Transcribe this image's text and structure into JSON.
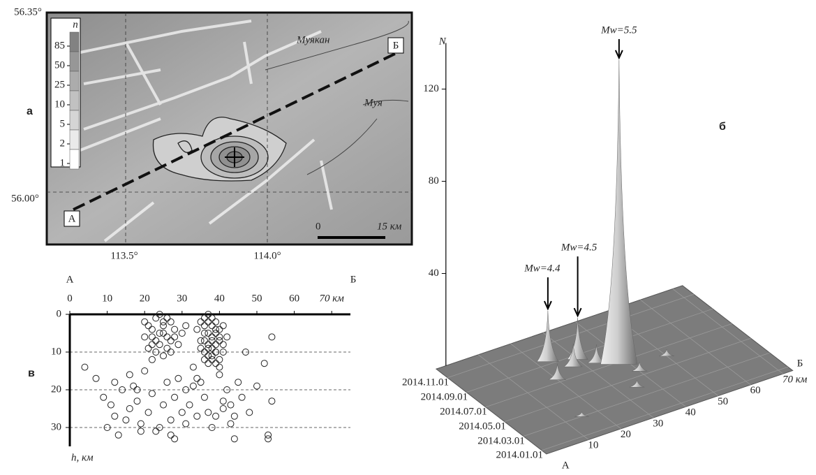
{
  "panels": {
    "a": "а",
    "b": "б",
    "v": "в"
  },
  "map": {
    "lat_labels": [
      "56.35°",
      "56.00°"
    ],
    "lon_labels": [
      "113.5°",
      "114.0°"
    ],
    "legend": {
      "title": "n",
      "ticks": [
        85,
        50,
        25,
        10,
        5,
        2,
        1
      ]
    },
    "rivers": [
      "Муякан",
      "Муя"
    ],
    "profile": [
      "А",
      "Б"
    ],
    "scale": [
      "0",
      "15 км"
    ]
  },
  "chart_data": [
    {
      "type": "scatter",
      "xlabel_start": "А",
      "xlabel_end": "Б",
      "ylabel": "h, км",
      "xlim": [
        0,
        75
      ],
      "ylim": [
        0,
        35
      ],
      "xticks": [
        0,
        10,
        20,
        30,
        40,
        50,
        60,
        {
          "value": 70,
          "label": "70 км"
        }
      ],
      "yticks": [
        0,
        10,
        20,
        30
      ],
      "grid": true,
      "x": [
        35,
        36,
        37,
        38,
        39,
        40,
        41,
        36,
        37,
        38,
        39,
        40,
        35,
        36,
        37,
        38,
        39,
        40,
        41,
        37,
        38,
        39,
        36,
        37,
        38,
        39,
        40,
        34,
        35,
        36,
        37,
        38,
        39,
        40,
        41,
        42,
        36,
        37,
        38,
        39,
        20,
        21,
        22,
        23,
        24,
        25,
        26,
        27,
        28,
        22,
        23,
        24,
        25,
        26,
        27,
        21,
        23,
        25,
        27,
        29,
        24,
        26,
        22,
        28,
        30,
        31,
        20,
        25,
        4,
        7,
        9,
        11,
        12,
        14,
        16,
        17,
        18,
        19,
        21,
        22,
        23,
        25,
        26,
        27,
        28,
        29,
        30,
        31,
        32,
        33,
        34,
        35,
        36,
        38,
        40,
        41,
        42,
        43,
        44,
        45,
        46,
        48,
        50,
        52,
        53,
        54,
        10,
        13,
        15,
        18,
        20,
        24,
        28,
        31,
        34,
        37,
        41,
        44,
        12,
        16,
        19,
        22,
        27,
        33,
        39,
        43,
        53,
        47,
        54
      ],
      "y": [
        2,
        3,
        2,
        3,
        2,
        4,
        3,
        5,
        5,
        6,
        5,
        6,
        7,
        7,
        8,
        7,
        8,
        7,
        8,
        9,
        9,
        10,
        10,
        11,
        11,
        10,
        12,
        4,
        9,
        12,
        13,
        12,
        13,
        14,
        10,
        6,
        1,
        0,
        1,
        4,
        2,
        3,
        4,
        1,
        5,
        3,
        6,
        2,
        4,
        6,
        7,
        8,
        5,
        9,
        7,
        9,
        10,
        2,
        10,
        8,
        0,
        1,
        8,
        6,
        5,
        3,
        6,
        11,
        14,
        17,
        22,
        24,
        27,
        20,
        25,
        19,
        23,
        29,
        26,
        21,
        31,
        24,
        18,
        28,
        22,
        17,
        26,
        20,
        24,
        19,
        27,
        18,
        22,
        30,
        16,
        25,
        20,
        24,
        27,
        18,
        22,
        26,
        19,
        13,
        32,
        23,
        30,
        32,
        28,
        20,
        15,
        30,
        33,
        29,
        17,
        26,
        23,
        33,
        18,
        16,
        31,
        12,
        32,
        14,
        27,
        29,
        33,
        10,
        6
      ]
    },
    {
      "type": "surface",
      "zlabel": "N",
      "xlabel_start": "А",
      "xlabel_end": "Б",
      "xlim": [
        0,
        70
      ],
      "xticks": [
        10,
        20,
        30,
        40,
        50,
        60,
        {
          "value": 70,
          "label": "70 км"
        }
      ],
      "tlim": [
        "2014.01.01",
        "2014.11.01"
      ],
      "tticks": [
        "2014.01.01",
        "2014.03.01",
        "2014.05.01",
        "2014.07.01",
        "2014.09.01",
        "2014.11.01"
      ],
      "ylim": [
        0,
        140
      ],
      "yticks": [
        40,
        80,
        120
      ],
      "annotations": [
        "Mw=5.5",
        "Mw=4.5",
        "Mw=4.4"
      ],
      "peaks": {
        "x": [
          37.5,
          30,
          23,
          27,
          33,
          20,
          40,
          35,
          15,
          50
        ],
        "t": [
          "2014.06.24",
          "2014.08.18",
          "2014.09.10",
          "2014.08.01",
          "2014.07.20",
          "2014.07.10",
          "2014.05.15",
          "2014.04.01",
          "2014.03.01",
          "2014.06.01"
        ],
        "values": [
          132,
          18,
          22,
          10,
          8,
          7,
          4,
          3,
          2,
          3
        ]
      }
    }
  ]
}
